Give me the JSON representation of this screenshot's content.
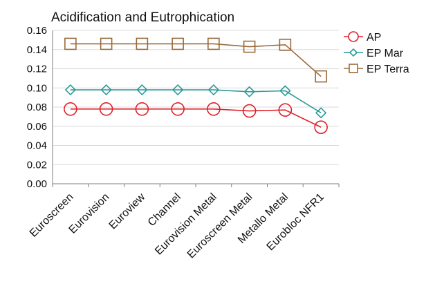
{
  "chart_data": {
    "type": "line",
    "title": "Acidification and Eutrophication",
    "xlabel": "",
    "ylabel": "",
    "categories": [
      "Euroscreen",
      "Eurovision",
      "Euroview",
      "Channel",
      "Eurovision Metal",
      "Euroscreen Metal",
      "Metallo Metal",
      "Eurobloc NFR1"
    ],
    "ylim": [
      0,
      0.16
    ],
    "yticks": [
      "0.00",
      "0.02",
      "0.04",
      "0.06",
      "0.08",
      "0.10",
      "0.12",
      "0.14",
      "0.16"
    ],
    "grid": true,
    "legend_position": "right",
    "series": [
      {
        "name": "AP",
        "color": "#e0202a",
        "marker": "circle",
        "values": [
          0.078,
          0.078,
          0.078,
          0.078,
          0.078,
          0.076,
          0.077,
          0.059
        ]
      },
      {
        "name": "EP Mar",
        "color": "#2a9a96",
        "marker": "diamond",
        "values": [
          0.098,
          0.098,
          0.098,
          0.098,
          0.098,
          0.096,
          0.097,
          0.074
        ]
      },
      {
        "name": "EP Terra",
        "color": "#9a6a3a",
        "marker": "square",
        "values": [
          0.146,
          0.146,
          0.146,
          0.146,
          0.146,
          0.143,
          0.145,
          0.112
        ]
      }
    ]
  }
}
